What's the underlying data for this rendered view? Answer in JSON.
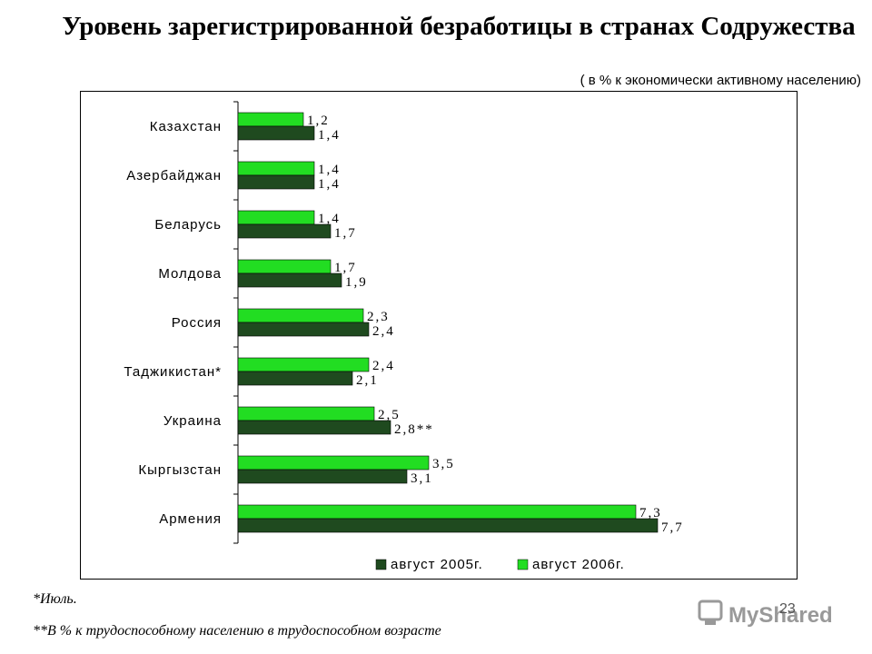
{
  "chart_data": {
    "type": "bar",
    "orientation": "horizontal",
    "title": "Уровень зарегистрированной безработицы в странах Содружества",
    "subtitle": "( в % к экономически активному населению)",
    "categories": [
      "Казахстан",
      "Азербайджан",
      "Беларусь",
      "Молдова",
      "Россия",
      "Таджикистан*",
      "Украина",
      "Кыргызстан",
      "Армения"
    ],
    "series": [
      {
        "name": "август 2005г.",
        "color": "#1f4a1f",
        "values": [
          1.4,
          1.4,
          1.7,
          1.9,
          2.4,
          2.1,
          2.8,
          3.1,
          7.7
        ],
        "labels": [
          "1,4",
          "1,4",
          "1,7",
          "1,9",
          "2,4",
          "2,1",
          "2,8**",
          "3,1",
          "7,7"
        ]
      },
      {
        "name": "август 2006г.",
        "color": "#22dd22",
        "values": [
          1.2,
          1.4,
          1.4,
          1.7,
          2.3,
          2.4,
          2.5,
          3.5,
          7.3
        ],
        "labels": [
          "1,2",
          "1,4",
          "1,4",
          "1,7",
          "2,3",
          "2,4",
          "2,5",
          "3,5",
          "7,3"
        ]
      }
    ],
    "xlim": [
      0,
      8
    ],
    "grid": false,
    "legend": "bottom"
  },
  "footnotes": {
    "note1": "*Июль.",
    "note2": "**В % к трудоспособному населению в трудоспособном возрасте"
  },
  "page_number": "23",
  "watermark": "MyShared"
}
